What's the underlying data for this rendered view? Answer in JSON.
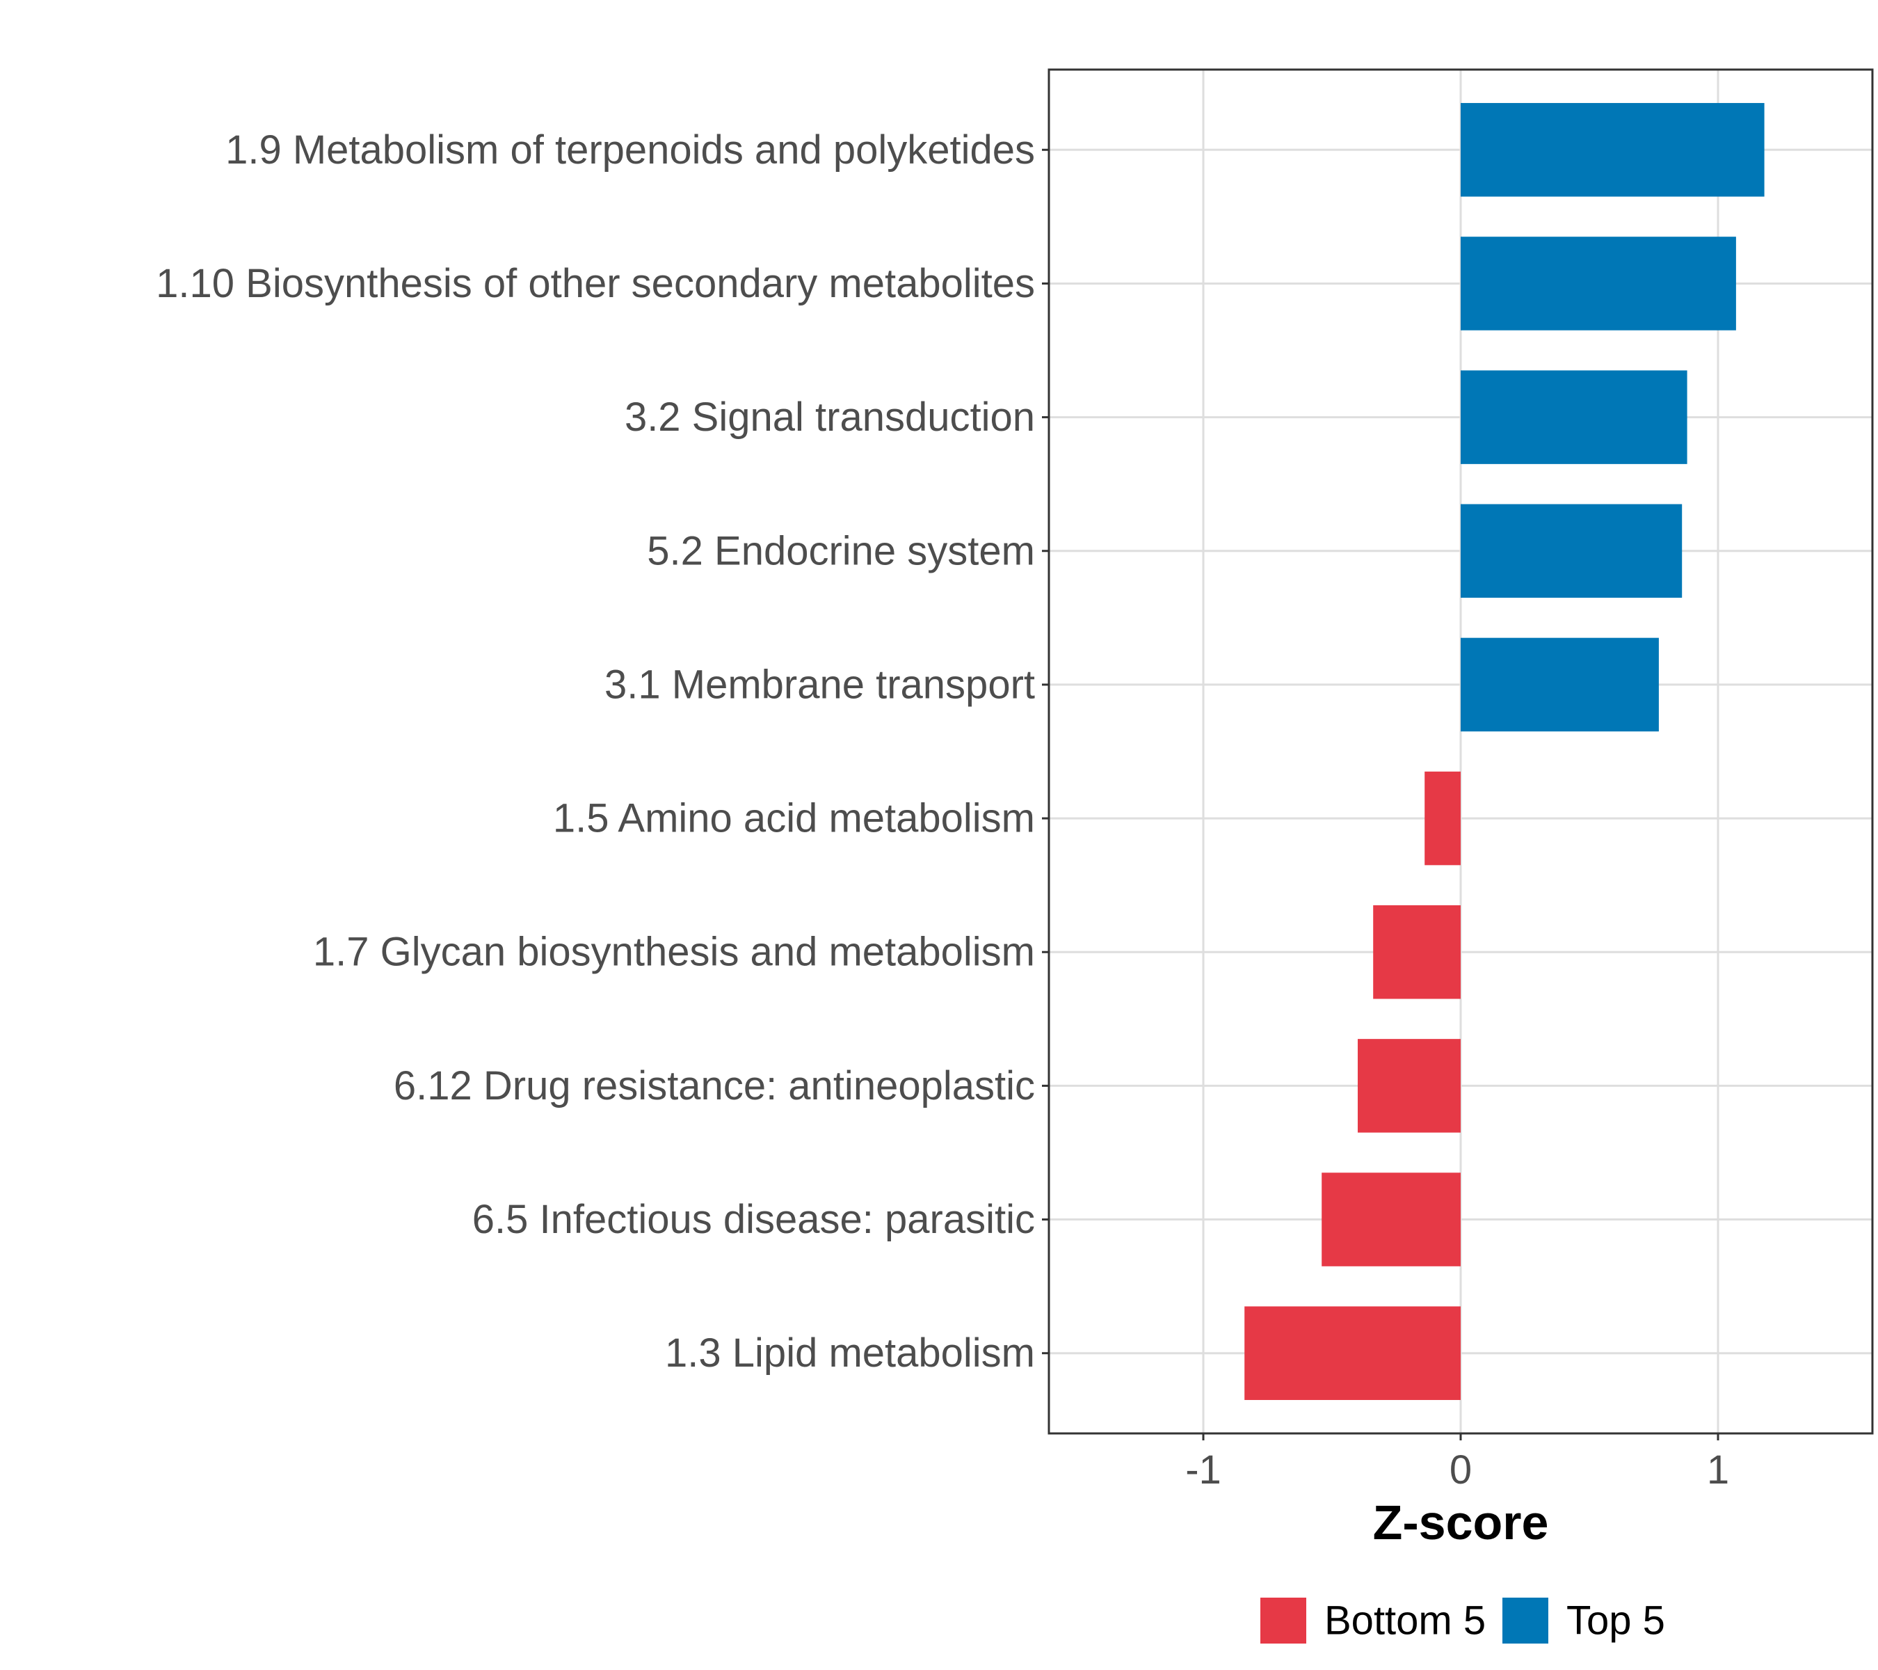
{
  "chart_data": {
    "type": "bar",
    "orientation": "horizontal",
    "title": "",
    "xlabel": "Z-score",
    "ylabel": "",
    "xlim": [
      -1.6,
      1.6
    ],
    "xticks": [
      -1,
      0,
      1
    ],
    "xtick_labels": [
      "-1",
      "0",
      "1"
    ],
    "grid": true,
    "legend_position": "bottom",
    "categories": [
      "1.9 Metabolism of terpenoids and polyketides",
      "1.10 Biosynthesis of other secondary metabolites",
      "3.2 Signal transduction",
      "5.2 Endocrine system",
      "3.1 Membrane transport",
      "1.5 Amino acid metabolism",
      "1.7 Glycan biosynthesis and metabolism",
      "6.12 Drug resistance: antineoplastic",
      "6.5 Infectious disease: parasitic",
      "1.3 Lipid metabolism"
    ],
    "values": [
      1.18,
      1.07,
      0.88,
      0.86,
      0.77,
      -0.14,
      -0.34,
      -0.4,
      -0.54,
      -0.84
    ],
    "groups": [
      "Top 5",
      "Top 5",
      "Top 5",
      "Top 5",
      "Top 5",
      "Bottom 5",
      "Bottom 5",
      "Bottom 5",
      "Bottom 5",
      "Bottom 5"
    ],
    "legend": [
      {
        "name": "Bottom 5",
        "color": "#e63946"
      },
      {
        "name": "Top 5",
        "color": "#0077b6"
      }
    ]
  }
}
